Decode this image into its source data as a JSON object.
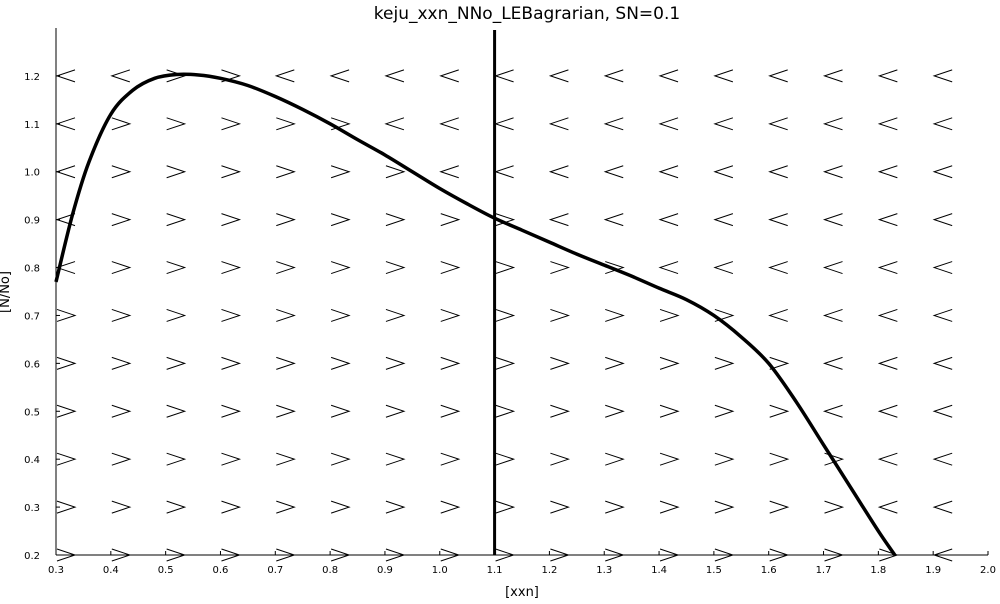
{
  "chart_data": {
    "type": "line",
    "title": "keju_xxn_NNo_LEBagrarian, SN=0.1",
    "xlabel": "[xxn]",
    "ylabel": "[N/No]",
    "xlim": [
      0.3,
      2.0
    ],
    "ylim": [
      0.2,
      1.3
    ],
    "xticks": [
      0.3,
      0.4,
      0.5,
      0.6,
      0.7,
      0.8,
      0.9,
      1.0,
      1.1,
      1.2,
      1.3,
      1.4,
      1.5,
      1.6,
      1.7,
      1.8,
      1.9,
      2.0
    ],
    "xtick_labels": [
      "0.3",
      "0.4",
      "0.5",
      "0.6",
      "0.7",
      "0.8",
      "0.9",
      "1.0",
      "1.1",
      "1.2",
      "1.3",
      "1.4",
      "1.5",
      "1.6",
      "1.7",
      "1.8",
      "1.9",
      "2.0"
    ],
    "yticks": [
      0.2,
      0.3,
      0.4,
      0.5,
      0.6,
      0.7,
      0.8,
      0.9,
      1.0,
      1.1,
      1.2
    ],
    "ytick_labels": [
      "0.2",
      "0.3",
      "0.4",
      "0.5",
      "0.6",
      "0.7",
      "0.8",
      "0.9",
      "1.0",
      "1.1",
      "1.2"
    ],
    "grid": false,
    "legend": false,
    "curve": {
      "x": [
        0.3,
        0.33,
        0.36,
        0.4,
        0.44,
        0.48,
        0.52,
        0.56,
        0.6,
        0.65,
        0.7,
        0.75,
        0.8,
        0.85,
        0.9,
        0.95,
        1.0,
        1.05,
        1.1,
        1.15,
        1.2,
        1.25,
        1.3,
        1.35,
        1.4,
        1.45,
        1.5,
        1.55,
        1.6,
        1.65,
        1.7,
        1.75,
        1.8,
        1.83
      ],
      "y": [
        0.77,
        0.91,
        1.02,
        1.12,
        1.17,
        1.195,
        1.203,
        1.202,
        1.195,
        1.18,
        1.157,
        1.13,
        1.1,
        1.067,
        1.035,
        1.0,
        0.965,
        0.933,
        0.903,
        0.878,
        0.853,
        0.828,
        0.805,
        0.782,
        0.757,
        0.733,
        0.7,
        0.655,
        0.6,
        0.52,
        0.43,
        0.34,
        0.25,
        0.2
      ]
    },
    "vertical_line_x": 1.1,
    "field_x": [
      0.3,
      0.4,
      0.5,
      0.6,
      0.7,
      0.8,
      0.9,
      1.0,
      1.1,
      1.2,
      1.3,
      1.4,
      1.5,
      1.6,
      1.7,
      1.8,
      1.9,
      2.0
    ],
    "field_y": [
      0.2,
      0.3,
      0.4,
      0.5,
      0.6,
      0.7,
      0.8,
      0.9,
      1.0,
      1.1,
      1.2
    ],
    "field_direction_rule": "points left (decreasing xxn) above the curve for xxn < 1.1 and in the region right of xxn = 1.1 above the curve; points right below the curve",
    "colors": {
      "line": "#000000",
      "marks": "#000000",
      "background": "#ffffff"
    }
  }
}
